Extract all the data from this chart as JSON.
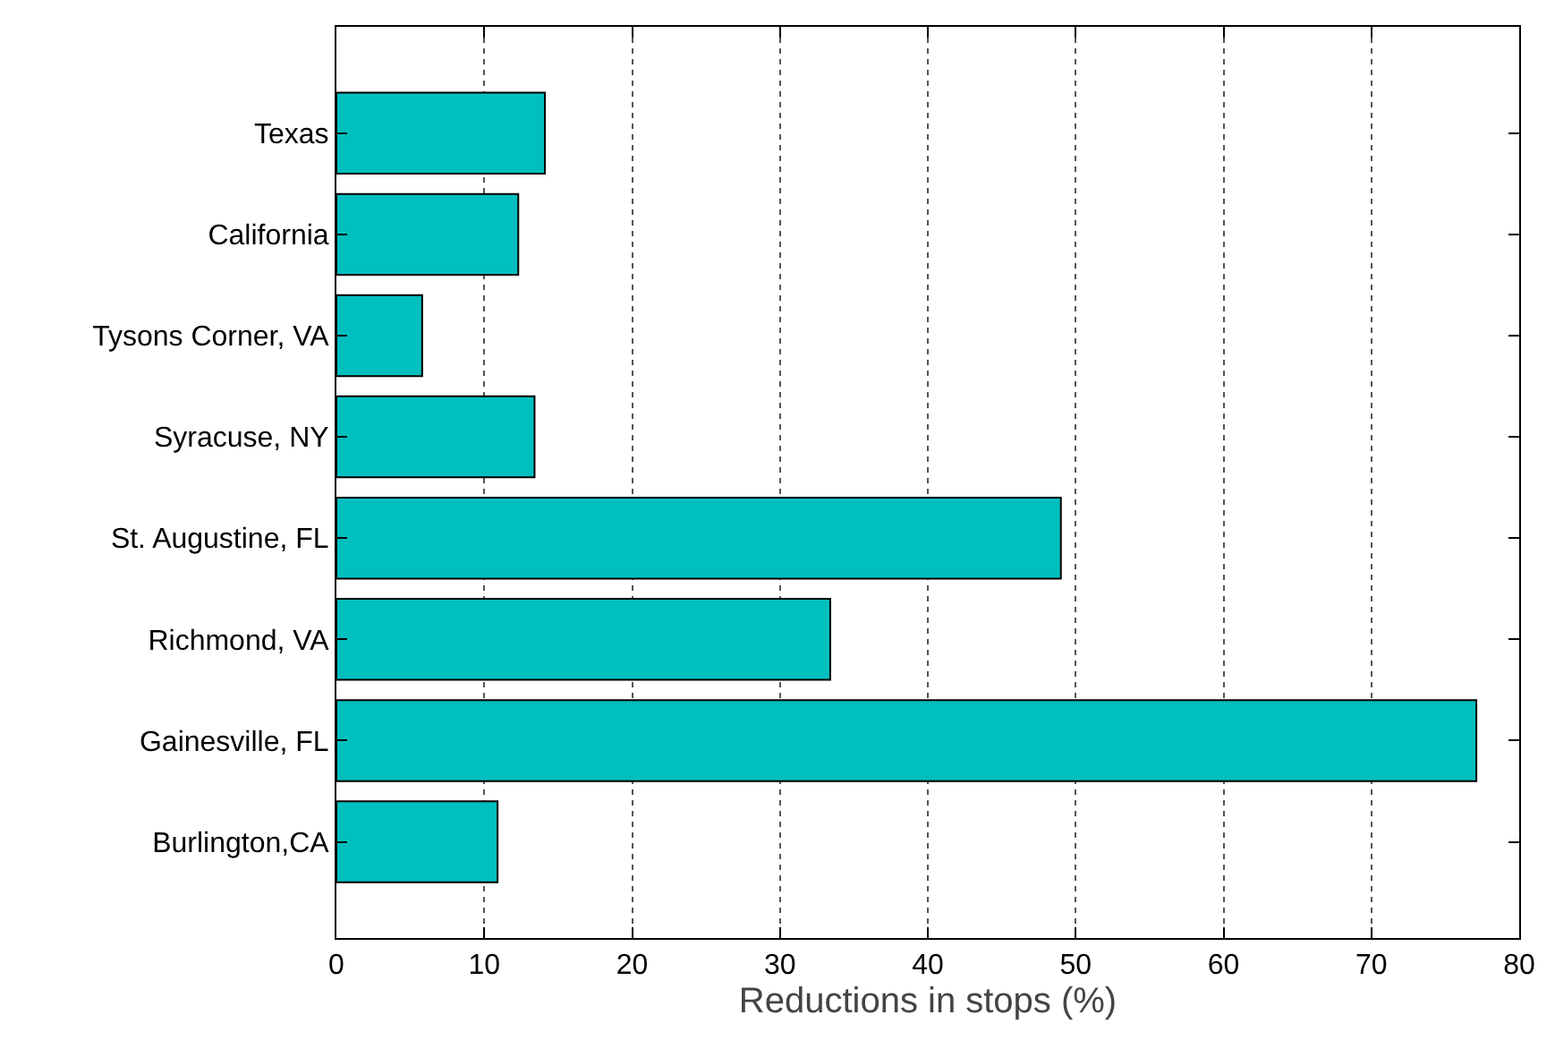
{
  "chart_data": {
    "type": "bar",
    "orientation": "horizontal",
    "xlabel": "Reductions in stops (%)",
    "categories": [
      "Texas",
      "California",
      "Tysons Corner, VA",
      "Syracuse, NY",
      "St. Augustine, FL",
      "Richmond, VA",
      "Gainesville, FL",
      "Burlington,CA"
    ],
    "values": [
      14.1,
      12.3,
      5.8,
      13.4,
      49,
      33.4,
      77.1,
      10.9
    ],
    "color": "#00bfbf",
    "xlim": [
      0,
      80
    ],
    "xticks": [
      0,
      10,
      20,
      30,
      40,
      50,
      60,
      70,
      80
    ],
    "grid": "x"
  }
}
